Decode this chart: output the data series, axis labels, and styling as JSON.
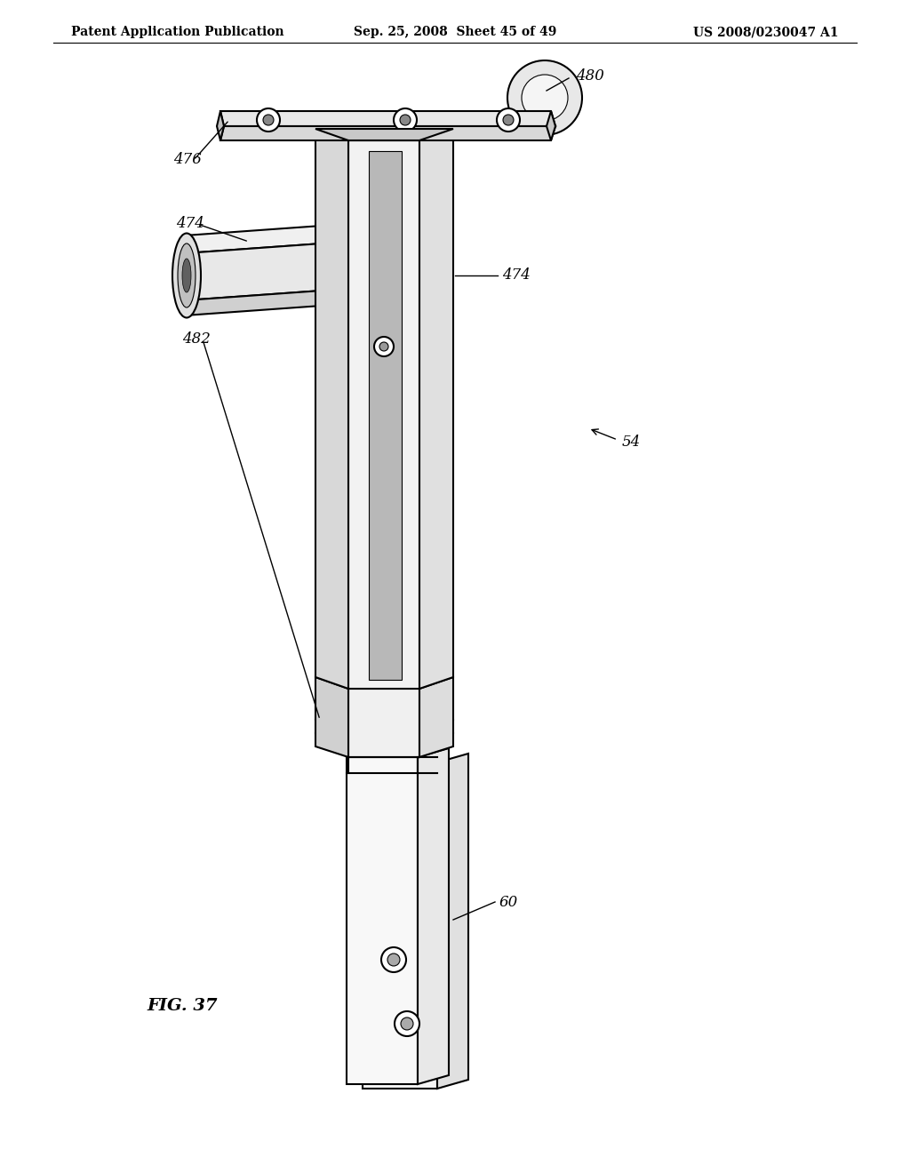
{
  "background_color": "#ffffff",
  "header_left": "Patent Application Publication",
  "header_center": "Sep. 25, 2008  Sheet 45 of 49",
  "header_right": "US 2008/0230047 A1",
  "fig_label": "FIG. 37",
  "lw": 1.5,
  "lc": "#000000",
  "fc_light": "#f0f0f0",
  "fc_mid": "#e0e0e0",
  "fc_dark": "#c8c8c8",
  "fc_white": "#ffffff",
  "label_fontsize": 12,
  "header_fontsize": 10
}
